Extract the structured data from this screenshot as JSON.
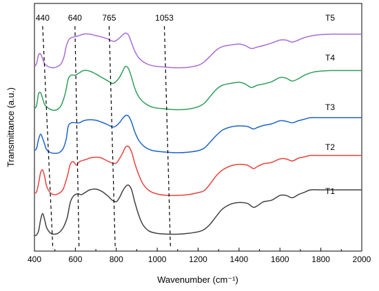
{
  "chart_data": {
    "type": "line",
    "xlabel": "Wavenumber (cm⁻¹)",
    "ylabel": "Transmittance (a.u.)",
    "xlim": [
      400,
      2000
    ],
    "x_ticks": [
      "400",
      "600",
      "800",
      "1000",
      "1200",
      "1400",
      "1600",
      "1800",
      "2000"
    ],
    "annotations": [
      {
        "label": "440",
        "top": 440,
        "bottom": 490
      },
      {
        "label": "640",
        "top": 598,
        "bottom": 618
      },
      {
        "label": "765",
        "top": 765,
        "bottom": 795
      },
      {
        "label": "1053",
        "top": 1035,
        "bottom": 1065
      }
    ],
    "series": [
      {
        "name": "T1",
        "color": "#404040",
        "points": [
          [
            400,
            0.02
          ],
          [
            410,
            0.03
          ],
          [
            420,
            0.08
          ],
          [
            430,
            0.22
          ],
          [
            440,
            0.3
          ],
          [
            450,
            0.22
          ],
          [
            460,
            0.12
          ],
          [
            480,
            0.05
          ],
          [
            500,
            0.04
          ],
          [
            520,
            0.06
          ],
          [
            540,
            0.12
          ],
          [
            560,
            0.25
          ],
          [
            575,
            0.44
          ],
          [
            590,
            0.52
          ],
          [
            610,
            0.55
          ],
          [
            630,
            0.54
          ],
          [
            650,
            0.57
          ],
          [
            670,
            0.6
          ],
          [
            700,
            0.61
          ],
          [
            730,
            0.58
          ],
          [
            760,
            0.52
          ],
          [
            780,
            0.47
          ],
          [
            800,
            0.45
          ],
          [
            815,
            0.5
          ],
          [
            830,
            0.58
          ],
          [
            845,
            0.64
          ],
          [
            860,
            0.66
          ],
          [
            875,
            0.6
          ],
          [
            890,
            0.45
          ],
          [
            910,
            0.28
          ],
          [
            930,
            0.16
          ],
          [
            960,
            0.08
          ],
          [
            1000,
            0.05
          ],
          [
            1050,
            0.04
          ],
          [
            1100,
            0.04
          ],
          [
            1150,
            0.05
          ],
          [
            1200,
            0.07
          ],
          [
            1230,
            0.1
          ],
          [
            1260,
            0.17
          ],
          [
            1290,
            0.27
          ],
          [
            1320,
            0.36
          ],
          [
            1360,
            0.42
          ],
          [
            1400,
            0.44
          ],
          [
            1440,
            0.43
          ],
          [
            1470,
            0.38
          ],
          [
            1490,
            0.4
          ],
          [
            1520,
            0.45
          ],
          [
            1560,
            0.47
          ],
          [
            1600,
            0.53
          ],
          [
            1630,
            0.53
          ],
          [
            1660,
            0.5
          ],
          [
            1690,
            0.54
          ],
          [
            1720,
            0.57
          ],
          [
            1750,
            0.6
          ],
          [
            1800,
            0.6
          ],
          [
            1850,
            0.6
          ],
          [
            1900,
            0.6
          ],
          [
            2000,
            0.6
          ]
        ]
      },
      {
        "name": "T2",
        "color": "#e8413c",
        "points": [
          [
            400,
            0.06
          ],
          [
            410,
            0.08
          ],
          [
            420,
            0.2
          ],
          [
            430,
            0.36
          ],
          [
            440,
            0.4
          ],
          [
            450,
            0.3
          ],
          [
            460,
            0.16
          ],
          [
            480,
            0.06
          ],
          [
            500,
            0.04
          ],
          [
            520,
            0.06
          ],
          [
            540,
            0.12
          ],
          [
            560,
            0.3
          ],
          [
            575,
            0.48
          ],
          [
            590,
            0.52
          ],
          [
            605,
            0.47
          ],
          [
            620,
            0.52
          ],
          [
            650,
            0.55
          ],
          [
            680,
            0.58
          ],
          [
            720,
            0.58
          ],
          [
            750,
            0.54
          ],
          [
            780,
            0.5
          ],
          [
            800,
            0.5
          ],
          [
            815,
            0.56
          ],
          [
            830,
            0.64
          ],
          [
            845,
            0.73
          ],
          [
            860,
            0.74
          ],
          [
            875,
            0.66
          ],
          [
            890,
            0.5
          ],
          [
            910,
            0.33
          ],
          [
            930,
            0.2
          ],
          [
            960,
            0.1
          ],
          [
            1000,
            0.05
          ],
          [
            1050,
            0.03
          ],
          [
            1100,
            0.03
          ],
          [
            1150,
            0.04
          ],
          [
            1200,
            0.07
          ],
          [
            1230,
            0.1
          ],
          [
            1260,
            0.2
          ],
          [
            1290,
            0.32
          ],
          [
            1320,
            0.4
          ],
          [
            1360,
            0.46
          ],
          [
            1400,
            0.48
          ],
          [
            1440,
            0.47
          ],
          [
            1470,
            0.42
          ],
          [
            1490,
            0.45
          ],
          [
            1520,
            0.49
          ],
          [
            1560,
            0.51
          ],
          [
            1600,
            0.56
          ],
          [
            1630,
            0.56
          ],
          [
            1660,
            0.53
          ],
          [
            1690,
            0.57
          ],
          [
            1720,
            0.59
          ],
          [
            1750,
            0.61
          ],
          [
            1800,
            0.61
          ],
          [
            1900,
            0.61
          ],
          [
            2000,
            0.61
          ]
        ]
      },
      {
        "name": "T3",
        "color": "#1c63c8",
        "points": [
          [
            400,
            0.09
          ],
          [
            410,
            0.12
          ],
          [
            420,
            0.3
          ],
          [
            430,
            0.4
          ],
          [
            440,
            0.32
          ],
          [
            450,
            0.2
          ],
          [
            460,
            0.1
          ],
          [
            480,
            0.04
          ],
          [
            500,
            0.03
          ],
          [
            520,
            0.04
          ],
          [
            540,
            0.12
          ],
          [
            555,
            0.3
          ],
          [
            565,
            0.55
          ],
          [
            580,
            0.62
          ],
          [
            600,
            0.62
          ],
          [
            620,
            0.62
          ],
          [
            640,
            0.66
          ],
          [
            670,
            0.68
          ],
          [
            700,
            0.67
          ],
          [
            730,
            0.63
          ],
          [
            760,
            0.58
          ],
          [
            780,
            0.54
          ],
          [
            795,
            0.55
          ],
          [
            815,
            0.62
          ],
          [
            830,
            0.7
          ],
          [
            845,
            0.76
          ],
          [
            860,
            0.75
          ],
          [
            875,
            0.63
          ],
          [
            890,
            0.45
          ],
          [
            910,
            0.28
          ],
          [
            940,
            0.15
          ],
          [
            980,
            0.08
          ],
          [
            1050,
            0.05
          ],
          [
            1100,
            0.04
          ],
          [
            1150,
            0.05
          ],
          [
            1200,
            0.08
          ],
          [
            1230,
            0.13
          ],
          [
            1260,
            0.25
          ],
          [
            1290,
            0.38
          ],
          [
            1320,
            0.48
          ],
          [
            1360,
            0.54
          ],
          [
            1400,
            0.56
          ],
          [
            1440,
            0.55
          ],
          [
            1470,
            0.5
          ],
          [
            1490,
            0.53
          ],
          [
            1520,
            0.57
          ],
          [
            1560,
            0.6
          ],
          [
            1600,
            0.66
          ],
          [
            1630,
            0.65
          ],
          [
            1660,
            0.62
          ],
          [
            1690,
            0.66
          ],
          [
            1720,
            0.69
          ],
          [
            1750,
            0.72
          ],
          [
            1800,
            0.72
          ],
          [
            1900,
            0.72
          ],
          [
            2000,
            0.72
          ]
        ]
      },
      {
        "name": "T4",
        "color": "#2e9e5c",
        "points": [
          [
            400,
            0.05
          ],
          [
            410,
            0.1
          ],
          [
            420,
            0.3
          ],
          [
            430,
            0.32
          ],
          [
            440,
            0.22
          ],
          [
            450,
            0.12
          ],
          [
            470,
            0.05
          ],
          [
            490,
            0.02
          ],
          [
            510,
            0.03
          ],
          [
            530,
            0.1
          ],
          [
            550,
            0.3
          ],
          [
            565,
            0.55
          ],
          [
            580,
            0.62
          ],
          [
            600,
            0.62
          ],
          [
            620,
            0.66
          ],
          [
            640,
            0.7
          ],
          [
            670,
            0.69
          ],
          [
            700,
            0.64
          ],
          [
            730,
            0.58
          ],
          [
            760,
            0.52
          ],
          [
            780,
            0.48
          ],
          [
            795,
            0.5
          ],
          [
            815,
            0.58
          ],
          [
            830,
            0.68
          ],
          [
            845,
            0.77
          ],
          [
            860,
            0.73
          ],
          [
            875,
            0.58
          ],
          [
            890,
            0.4
          ],
          [
            910,
            0.25
          ],
          [
            940,
            0.14
          ],
          [
            980,
            0.07
          ],
          [
            1050,
            0.04
          ],
          [
            1100,
            0.03
          ],
          [
            1150,
            0.04
          ],
          [
            1200,
            0.08
          ],
          [
            1230,
            0.14
          ],
          [
            1260,
            0.26
          ],
          [
            1290,
            0.38
          ],
          [
            1320,
            0.45
          ],
          [
            1360,
            0.48
          ],
          [
            1400,
            0.5
          ],
          [
            1430,
            0.47
          ],
          [
            1460,
            0.41
          ],
          [
            1490,
            0.45
          ],
          [
            1520,
            0.47
          ],
          [
            1560,
            0.51
          ],
          [
            1600,
            0.58
          ],
          [
            1630,
            0.57
          ],
          [
            1660,
            0.52
          ],
          [
            1690,
            0.56
          ],
          [
            1720,
            0.62
          ],
          [
            1760,
            0.67
          ],
          [
            1800,
            0.69
          ],
          [
            1850,
            0.7
          ],
          [
            1900,
            0.7
          ],
          [
            2000,
            0.7
          ]
        ]
      },
      {
        "name": "T5",
        "color": "#a86ad8",
        "points": [
          [
            400,
            0.05
          ],
          [
            410,
            0.1
          ],
          [
            420,
            0.28
          ],
          [
            430,
            0.3
          ],
          [
            440,
            0.2
          ],
          [
            450,
            0.1
          ],
          [
            470,
            0.04
          ],
          [
            490,
            0.02
          ],
          [
            510,
            0.04
          ],
          [
            530,
            0.1
          ],
          [
            545,
            0.25
          ],
          [
            555,
            0.45
          ],
          [
            570,
            0.6
          ],
          [
            590,
            0.64
          ],
          [
            610,
            0.66
          ],
          [
            640,
            0.7
          ],
          [
            670,
            0.7
          ],
          [
            700,
            0.67
          ],
          [
            730,
            0.64
          ],
          [
            760,
            0.6
          ],
          [
            780,
            0.56
          ],
          [
            795,
            0.56
          ],
          [
            815,
            0.62
          ],
          [
            830,
            0.68
          ],
          [
            845,
            0.72
          ],
          [
            860,
            0.68
          ],
          [
            875,
            0.52
          ],
          [
            890,
            0.36
          ],
          [
            910,
            0.22
          ],
          [
            940,
            0.12
          ],
          [
            980,
            0.06
          ],
          [
            1050,
            0.03
          ],
          [
            1100,
            0.02
          ],
          [
            1150,
            0.03
          ],
          [
            1200,
            0.07
          ],
          [
            1230,
            0.14
          ],
          [
            1260,
            0.26
          ],
          [
            1290,
            0.38
          ],
          [
            1320,
            0.45
          ],
          [
            1360,
            0.48
          ],
          [
            1400,
            0.5
          ],
          [
            1430,
            0.47
          ],
          [
            1460,
            0.41
          ],
          [
            1490,
            0.44
          ],
          [
            1520,
            0.47
          ],
          [
            1560,
            0.52
          ],
          [
            1600,
            0.58
          ],
          [
            1630,
            0.58
          ],
          [
            1660,
            0.54
          ],
          [
            1690,
            0.58
          ],
          [
            1720,
            0.63
          ],
          [
            1760,
            0.67
          ],
          [
            1800,
            0.69
          ],
          [
            1850,
            0.7
          ],
          [
            1900,
            0.7
          ],
          [
            2000,
            0.7
          ]
        ]
      }
    ]
  }
}
